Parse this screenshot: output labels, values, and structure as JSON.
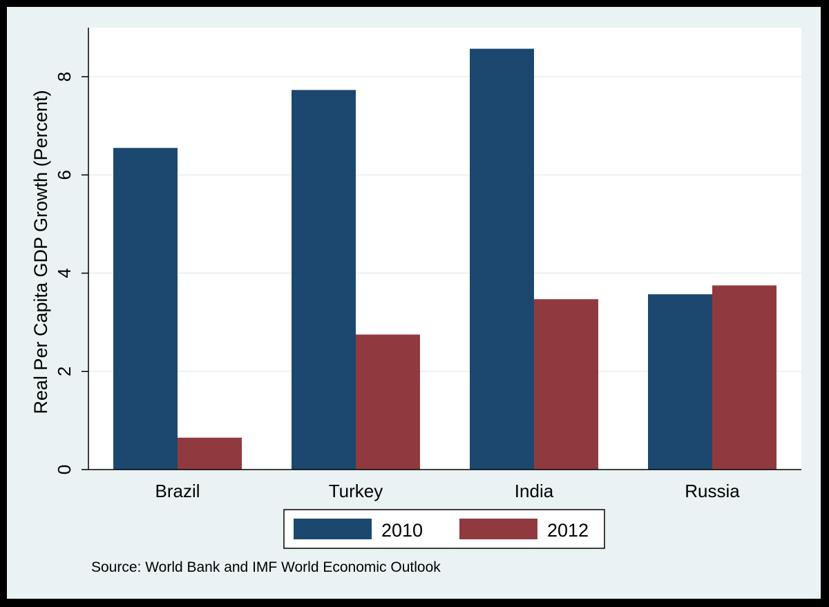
{
  "chart_data": {
    "type": "bar",
    "categories": [
      "Brazil",
      "Turkey",
      "India",
      "Russia"
    ],
    "series": [
      {
        "name": "2010",
        "values": [
          6.55,
          7.73,
          8.57,
          3.57
        ],
        "color": "#1c4870"
      },
      {
        "name": "2012",
        "values": [
          0.65,
          2.75,
          3.47,
          3.75
        ],
        "color": "#903a40"
      }
    ],
    "ylabel": "Real Per Capita GDP Growth (Percent)",
    "xlabel": "",
    "ylim": [
      0,
      9
    ],
    "yticks": [
      0,
      2,
      4,
      6,
      8
    ],
    "grid": true,
    "legend_position": "bottom",
    "note": "Source: World Bank and IMF World Economic Outlook"
  },
  "colors": {
    "background": "#eaf2f3",
    "plot_background": "#ffffff",
    "gridline": "#eaf2f3",
    "frame": "#000000"
  }
}
